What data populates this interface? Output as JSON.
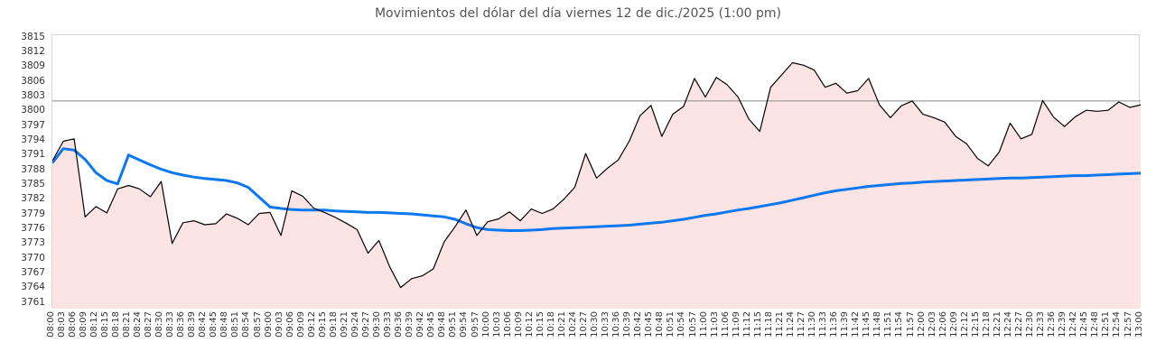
{
  "chart_data": {
    "type": "area",
    "title": "Movimientos del dólar del día viernes 12 de dic./2025 (1:00 pm)",
    "xlabel": "",
    "ylabel": "",
    "grid": "off",
    "legend": "none",
    "ylim": [
      3759.9,
      3815.6
    ],
    "y_tick_labels": [
      3815,
      3812,
      3809,
      3806,
      3803,
      3800,
      3797,
      3794,
      3791,
      3788,
      3785,
      3782,
      3779,
      3776,
      3773,
      3770,
      3767,
      3764,
      3761
    ],
    "x_tick_labels": [
      "08:00",
      "08:03",
      "08:06",
      "08:09",
      "08:12",
      "08:15",
      "08:18",
      "08:21",
      "08:24",
      "08:27",
      "08:30",
      "08:33",
      "08:36",
      "08:39",
      "08:42",
      "08:45",
      "08:48",
      "08:51",
      "08:54",
      "08:57",
      "09:00",
      "09:03",
      "09:06",
      "09:09",
      "09:12",
      "09:15",
      "09:18",
      "09:21",
      "09:24",
      "09:27",
      "09:30",
      "09:33",
      "09:36",
      "09:39",
      "09:42",
      "09:45",
      "09:48",
      "09:51",
      "09:54",
      "09:57",
      "10:00",
      "10:03",
      "10:06",
      "10:09",
      "10:12",
      "10:15",
      "10:18",
      "10:21",
      "10:24",
      "10:27",
      "10:30",
      "10:33",
      "10:36",
      "10:39",
      "10:42",
      "10:45",
      "10:48",
      "10:51",
      "10:54",
      "10:57",
      "11:00",
      "11:03",
      "11:06",
      "11:09",
      "11:12",
      "11:15",
      "11:18",
      "11:21",
      "11:24",
      "11:27",
      "11:30",
      "11:33",
      "11:36",
      "11:39",
      "11:42",
      "11:45",
      "11:48",
      "11:51",
      "11:54",
      "11:57",
      "12:00",
      "12:03",
      "12:06",
      "12:09",
      "12:12",
      "12:15",
      "12:18",
      "12:21",
      "12:24",
      "12:27",
      "12:30",
      "12:33",
      "12:36",
      "12:39",
      "12:42",
      "12:45",
      "12:48",
      "12:51",
      "12:54",
      "12:57",
      "13:00"
    ],
    "reference_line": {
      "value": 3802.2,
      "color": "#888888"
    },
    "series": [
      {
        "name": "dollar-price",
        "type": "area",
        "line_color": "#000000",
        "line_width": 1.2,
        "fill_color": "#fde4e4",
        "values": [
          3790,
          3794,
          3794.5,
          3778.6,
          3780.7,
          3779.4,
          3784.3,
          3785,
          3784.3,
          3782.7,
          3785.8,
          3773.2,
          3777.4,
          3777.8,
          3777,
          3777.2,
          3779.2,
          3778.3,
          3777,
          3779.3,
          3779.5,
          3774.8,
          3783.9,
          3782.8,
          3780.4,
          3779.5,
          3778.5,
          3777.3,
          3776,
          3771.2,
          3773.8,
          3768.4,
          3764.2,
          3766,
          3766.6,
          3768,
          3773.5,
          3776.6,
          3780,
          3774.8,
          3777.6,
          3778.2,
          3779.6,
          3777.8,
          3780.2,
          3779.3,
          3780.2,
          3782.2,
          3784.6,
          3791.5,
          3786.5,
          3788.5,
          3790.2,
          3794,
          3799.2,
          3801.3,
          3795,
          3799.5,
          3801.1,
          3806.8,
          3803,
          3807,
          3805.5,
          3803,
          3798.5,
          3796,
          3805,
          3807.5,
          3810,
          3809.5,
          3808.5,
          3805,
          3805.8,
          3803.8,
          3804.3,
          3806.8,
          3801.4,
          3798.8,
          3801.2,
          3802.2,
          3799.5,
          3798.8,
          3797.9,
          3795,
          3793.5,
          3790.5,
          3789,
          3791.8,
          3797.7,
          3794.5,
          3795.4,
          3802.3,
          3798.9,
          3797,
          3799,
          3800.3,
          3800.1,
          3800.3,
          3802,
          3800.9,
          3801.4
        ]
      },
      {
        "name": "average-price",
        "type": "line",
        "line_color": "#0b78f0",
        "line_width": 3,
        "values": [
          3789.6,
          3792.5,
          3792.2,
          3790.3,
          3787.6,
          3786,
          3785.3,
          3791.2,
          3790.2,
          3789.2,
          3788.3,
          3787.6,
          3787.1,
          3786.7,
          3786.4,
          3786.2,
          3786,
          3785.5,
          3784.6,
          3782.6,
          3780.6,
          3780.3,
          3780.1,
          3780,
          3780,
          3780,
          3779.8,
          3779.7,
          3779.6,
          3779.5,
          3779.5,
          3779.4,
          3779.3,
          3779.2,
          3779,
          3778.8,
          3778.6,
          3778.1,
          3777.2,
          3776.4,
          3776,
          3775.9,
          3775.8,
          3775.8,
          3775.9,
          3776,
          3776.2,
          3776.3,
          3776.4,
          3776.5,
          3776.6,
          3776.7,
          3776.8,
          3776.9,
          3777.1,
          3777.3,
          3777.5,
          3777.8,
          3778.1,
          3778.5,
          3778.9,
          3779.2,
          3779.6,
          3780,
          3780.3,
          3780.7,
          3781.1,
          3781.5,
          3782,
          3782.5,
          3783,
          3783.5,
          3783.9,
          3784.2,
          3784.5,
          3784.8,
          3785,
          3785.2,
          3785.4,
          3785.5,
          3785.7,
          3785.8,
          3785.9,
          3786,
          3786.1,
          3786.2,
          3786.3,
          3786.4,
          3786.5,
          3786.5,
          3786.6,
          3786.7,
          3786.8,
          3786.9,
          3787,
          3787,
          3787.1,
          3787.2,
          3787.3,
          3787.4,
          3787.5
        ]
      }
    ],
    "plot_border_color": "#d5d5d5",
    "tick_label_color": "#333333",
    "title_color": "#555555",
    "background_color": "#ffffff"
  }
}
